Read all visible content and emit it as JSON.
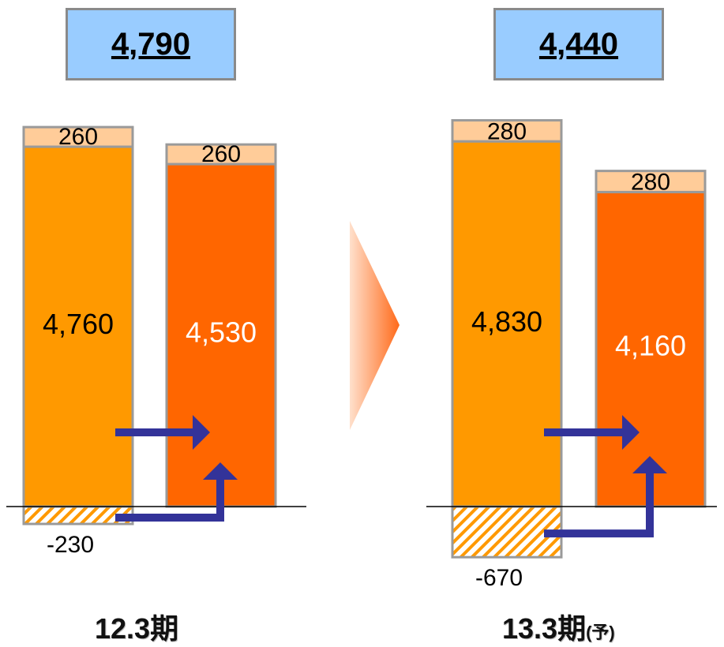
{
  "chart_data": [
    {
      "type": "bar",
      "period": "12.3期",
      "period_suffix": "",
      "total": "4,790",
      "bars": [
        {
          "name": "left",
          "main": 4760,
          "main_label": "4,760",
          "top": 260,
          "top_label": "260",
          "negative": -230,
          "negative_label": "-230"
        },
        {
          "name": "right",
          "main": 4530,
          "main_label": "4,530",
          "top": 260,
          "top_label": "260"
        }
      ]
    },
    {
      "type": "bar",
      "period": "13.3期",
      "period_suffix": "(予)",
      "total": "4,440",
      "bars": [
        {
          "name": "left",
          "main": 4830,
          "main_label": "4,830",
          "top": 280,
          "top_label": "280",
          "negative": -670,
          "negative_label": "-670"
        },
        {
          "name": "right",
          "main": 4160,
          "main_label": "4,160",
          "top": 280,
          "top_label": "280"
        }
      ]
    }
  ],
  "colors": {
    "main_left": "#ff9900",
    "main_right": "#ff6600",
    "top_segment": "#ffcc99",
    "border": "#9a9a9a",
    "hatch": "#ff9900",
    "arrow": "#333399",
    "total_box": "#99ccff",
    "transition_arrow": "#ff8a33"
  },
  "icons": {
    "transition": "triangle-right-icon",
    "flow": "arrow-icon"
  }
}
